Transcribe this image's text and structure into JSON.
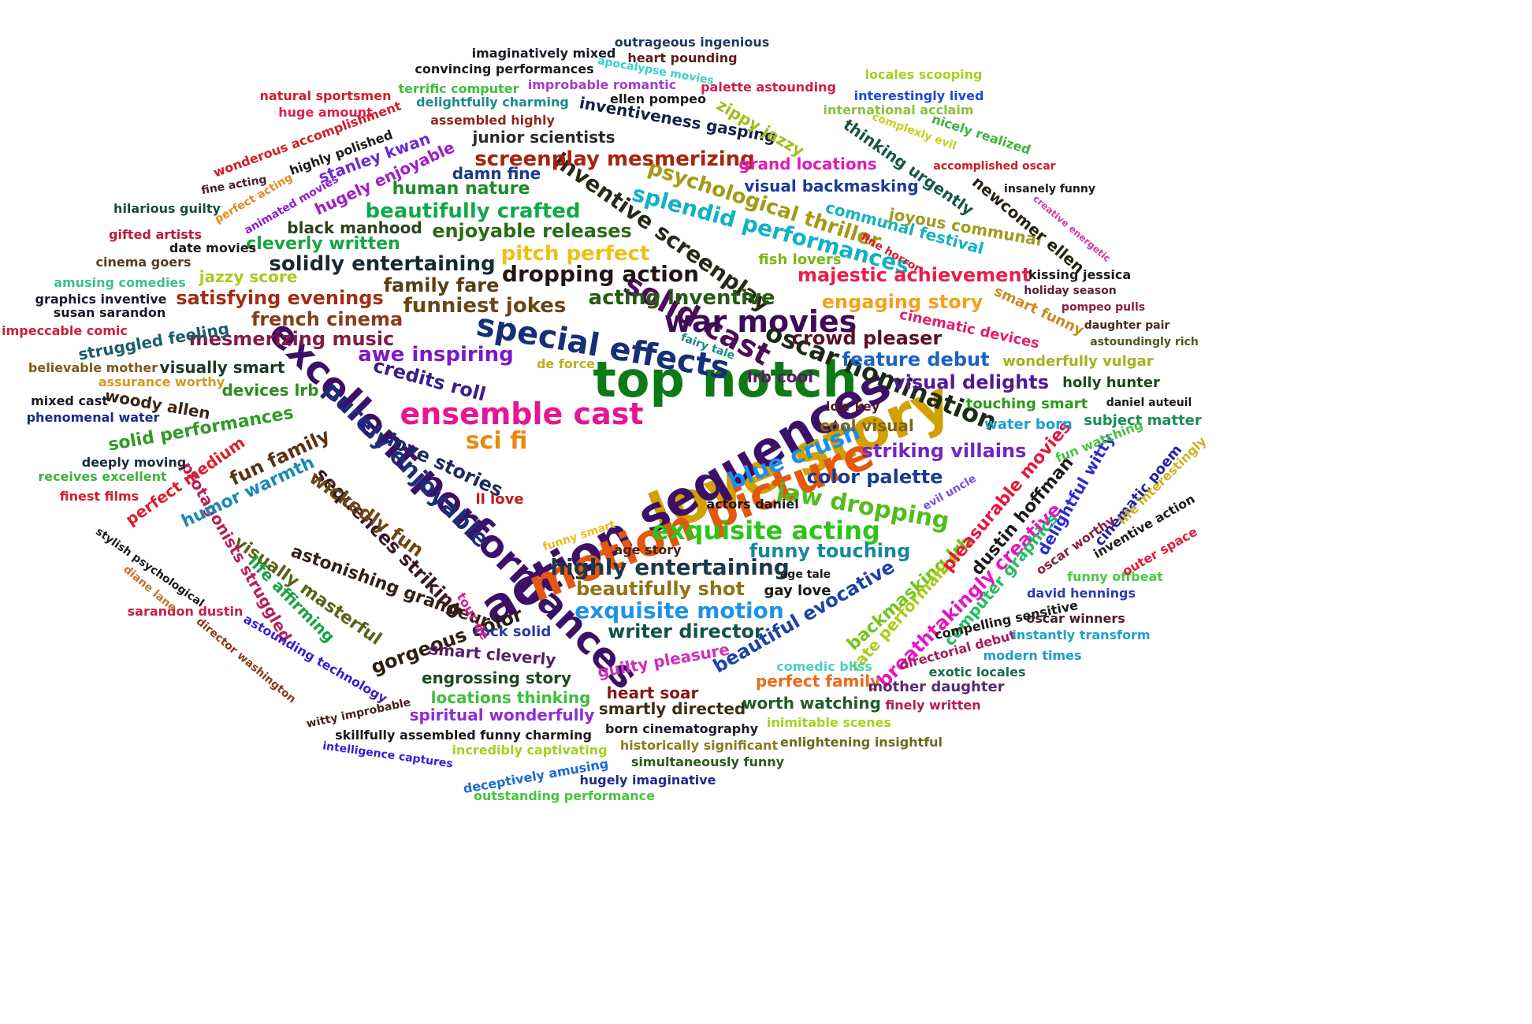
{
  "words": [
    {
      "text": "top notch",
      "color": "#0e7a16"
    },
    {
      "text": "love story",
      "color": "#d2a000"
    },
    {
      "text": "action sequences",
      "color": "#3c0f68"
    },
    {
      "text": "excellent performances",
      "color": "#3c0f68"
    },
    {
      "text": "motion picture",
      "color": "#e3570f"
    },
    {
      "text": "special effects",
      "color": "#172f78"
    },
    {
      "text": "solid cast",
      "color": "#4c0d5a"
    },
    {
      "text": "ensemble cast",
      "color": "#e61593"
    },
    {
      "text": "war movies",
      "color": "#3e0b59"
    },
    {
      "text": "oscar nomination",
      "color": "#1c2b18"
    },
    {
      "text": "purely enjoyable",
      "color": "#1c2e7a"
    },
    {
      "text": "exquisite acting",
      "color": "#2ec41b"
    },
    {
      "text": "dropping action",
      "color": "#231515"
    },
    {
      "text": "sci fi",
      "color": "#e88a10"
    },
    {
      "text": "blue crush",
      "color": "#1e8fe8"
    },
    {
      "text": "jaw dropping",
      "color": "#52bd1e"
    },
    {
      "text": "highly entertaining",
      "color": "#1b3949"
    },
    {
      "text": "exquisite motion",
      "color": "#1f92e8"
    },
    {
      "text": "pitch perfect",
      "color": "#eec018"
    },
    {
      "text": "splendid performances",
      "color": "#11b1c8"
    },
    {
      "text": "inventive screenplay",
      "color": "#252a17"
    },
    {
      "text": "screenplay mesmerizing",
      "color": "#a6230f"
    },
    {
      "text": "beautifully crafted",
      "color": "#10a94a"
    },
    {
      "text": "psychological thriller",
      "color": "#a39b14"
    },
    {
      "text": "solidly entertaining",
      "color": "#152a33"
    },
    {
      "text": "enjoyable releases",
      "color": "#2a6b15"
    },
    {
      "text": "family fare",
      "color": "#5a3c11"
    },
    {
      "text": "funniest jokes",
      "color": "#6a4614"
    },
    {
      "text": "acting inventive",
      "color": "#265a15"
    },
    {
      "text": "majestic achievement",
      "color": "#e91e4e"
    },
    {
      "text": "engaging story",
      "color": "#f4a11f"
    },
    {
      "text": "satisfying evenings",
      "color": "#a02e14"
    },
    {
      "text": "french cinema",
      "color": "#8a3b17"
    },
    {
      "text": "mesmerizing music",
      "color": "#821c45"
    },
    {
      "text": "awe inspiring",
      "color": "#7c18c9"
    },
    {
      "text": "credits roll",
      "color": "#3c1c8c"
    },
    {
      "text": "crowd pleaser",
      "color": "#5a1128"
    },
    {
      "text": "feature debut",
      "color": "#1a63c8"
    },
    {
      "text": "visual delights",
      "color": "#521a93"
    },
    {
      "text": "striking villains",
      "color": "#7424c7"
    },
    {
      "text": "color palette",
      "color": "#193c92"
    },
    {
      "text": "funny touching",
      "color": "#17879d"
    },
    {
      "text": "writer director",
      "color": "#135247"
    },
    {
      "text": "beautifully shot",
      "color": "#917215"
    },
    {
      "text": "beautiful evocative",
      "color": "#1a43a7"
    },
    {
      "text": "backmasking lrb",
      "color": "#74c51b"
    },
    {
      "text": "breathtakingly creative",
      "color": "#e615c4"
    },
    {
      "text": "rate performance",
      "color": "#aacb18"
    },
    {
      "text": "pleasurable movies",
      "color": "#e7163d"
    },
    {
      "text": "dustin hoffman",
      "color": "#1a1a1a"
    },
    {
      "text": "delightful witty",
      "color": "#2b2bd2"
    },
    {
      "text": "cinematic poem",
      "color": "#2420a2"
    },
    {
      "text": "computer graphics",
      "color": "#20bd61"
    },
    {
      "text": "sequences striking",
      "color": "#3a1427"
    },
    {
      "text": "wickedly fun",
      "color": "#6d4712"
    },
    {
      "text": "astonishing grandeur",
      "color": "#352017"
    },
    {
      "text": "visually masterful",
      "color": "#5a6115"
    },
    {
      "text": "life affirming",
      "color": "#17a04c"
    },
    {
      "text": "protagonists struggled",
      "color": "#b71f57"
    },
    {
      "text": "gorgeous color",
      "color": "#2a2012"
    },
    {
      "text": "love stories",
      "color": "#1b2a65"
    },
    {
      "text": "fun family",
      "color": "#5a3215"
    },
    {
      "text": "humor warmth",
      "color": "#1a8ab2"
    },
    {
      "text": "solid performances",
      "color": "#2f9a24"
    },
    {
      "text": "perfect medium",
      "color": "#db1f2d"
    },
    {
      "text": "woody allen",
      "color": "#3b2414"
    },
    {
      "text": "devices lrb",
      "color": "#2c8d1f"
    },
    {
      "text": "visually smart",
      "color": "#1d3723"
    },
    {
      "text": "struggled feeling",
      "color": "#1b5d6d"
    },
    {
      "text": "cleverly written",
      "color": "#14a641"
    },
    {
      "text": "black manhood",
      "color": "#2a451d"
    },
    {
      "text": "human nature",
      "color": "#1c8a28"
    },
    {
      "text": "damn fine",
      "color": "#1c388b"
    },
    {
      "text": "junior scientists",
      "color": "#2a2a2a"
    },
    {
      "text": "hugely enjoyable",
      "color": "#a21cc4"
    },
    {
      "text": "stanley kwan",
      "color": "#6b2bd0"
    },
    {
      "text": "jazzy score",
      "color": "#b1c622"
    },
    {
      "text": "inventiveness gasping",
      "color": "#15204a"
    },
    {
      "text": "zippy jazzy",
      "color": "#a8bb20"
    },
    {
      "text": "grand locations",
      "color": "#e21bb5"
    },
    {
      "text": "visual backmasking",
      "color": "#1c3b96"
    },
    {
      "text": "communal festival",
      "color": "#14b3c0"
    },
    {
      "text": "joyous communal",
      "color": "#9d9d1b"
    },
    {
      "text": "thinking urgently",
      "color": "#175547"
    },
    {
      "text": "newcomer ellen",
      "color": "#252010"
    },
    {
      "text": "fish lovers",
      "color": "#78b51e"
    },
    {
      "text": "kissing jessica",
      "color": "#1a1a1a"
    },
    {
      "text": "smart funny",
      "color": "#ca891f"
    },
    {
      "text": "cinematic devices",
      "color": "#e51d6e"
    },
    {
      "text": "wonderfully vulgar",
      "color": "#a5b11e"
    },
    {
      "text": "holly hunter",
      "color": "#1a4a1a"
    },
    {
      "text": "touching smart",
      "color": "#2c9b1c"
    },
    {
      "text": "cool visual",
      "color": "#7a6418"
    },
    {
      "text": "subject matter",
      "color": "#1a8e57"
    },
    {
      "text": "water born",
      "color": "#1da0d1"
    },
    {
      "text": "lrb cool",
      "color": "#5a1a6b"
    },
    {
      "text": "low key",
      "color": "#521d1d"
    },
    {
      "text": "actors daniel",
      "color": "#1a1a1a"
    },
    {
      "text": "evil uncle",
      "color": "#7b4fd2"
    },
    {
      "text": "fun watching",
      "color": "#46c33e"
    },
    {
      "text": "fairy tale",
      "color": "#158a7d"
    },
    {
      "text": "de force",
      "color": "#b8b023"
    },
    {
      "text": "ll love",
      "color": "#c21a1a"
    },
    {
      "text": "funny smart",
      "color": "#e9ba1d"
    },
    {
      "text": "age story",
      "color": "#4d1d1d"
    },
    {
      "text": "age tale",
      "color": "#1a1a1a"
    },
    {
      "text": "gay love",
      "color": "#1a1a1a"
    },
    {
      "text": "rock solid",
      "color": "#2a3a9b"
    },
    {
      "text": "smart cleverly",
      "color": "#5a1d6b"
    },
    {
      "text": "tour de",
      "color": "#d51e8d"
    },
    {
      "text": "guilty pleasure",
      "color": "#d22dbd"
    },
    {
      "text": "engrossing story",
      "color": "#1d4a1d"
    },
    {
      "text": "locations thinking",
      "color": "#3bc13b"
    },
    {
      "text": "spiritual wonderfully",
      "color": "#8f2ed6"
    },
    {
      "text": "heart soar",
      "color": "#8a1515"
    },
    {
      "text": "smartly directed",
      "color": "#3a2f1a"
    },
    {
      "text": "worth watching",
      "color": "#1f5d2a"
    },
    {
      "text": "perfect family",
      "color": "#ea6a1a"
    },
    {
      "text": "comedic bliss",
      "color": "#4ad0c0"
    },
    {
      "text": "mother daughter",
      "color": "#5a2a74"
    },
    {
      "text": "exotic locales",
      "color": "#1d6b4a"
    },
    {
      "text": "directorial debut",
      "color": "#a31d5a"
    },
    {
      "text": "compelling sensitive",
      "color": "#1a1a1a"
    },
    {
      "text": "modern times",
      "color": "#1d9bc8"
    },
    {
      "text": "instantly transform",
      "color": "#1fa0c9"
    },
    {
      "text": "oscar winners",
      "color": "#4a1d2a"
    },
    {
      "text": "david hennings",
      "color": "#2b3cb0"
    },
    {
      "text": "funny offbeat",
      "color": "#46cc3e"
    },
    {
      "text": "oscar worthy",
      "color": "#8a1d4a"
    },
    {
      "text": "inventive action",
      "color": "#1a1a1a"
    },
    {
      "text": "life interestingly",
      "color": "#c7b61e"
    },
    {
      "text": "outer space",
      "color": "#e01d3a"
    },
    {
      "text": "finely written",
      "color": "#b51d4a"
    },
    {
      "text": "inimitable scenes",
      "color": "#a7d01d"
    },
    {
      "text": "born cinematography",
      "color": "#1a1a2a"
    },
    {
      "text": "enlightening insightful",
      "color": "#6a6a1d"
    },
    {
      "text": "historically significant",
      "color": "#8a7a1d"
    },
    {
      "text": "simultaneously funny",
      "color": "#2a5a1d"
    },
    {
      "text": "hugely imaginative",
      "color": "#1d2a8a"
    },
    {
      "text": "deceptively amusing",
      "color": "#1d6bd0"
    },
    {
      "text": "outstanding performance",
      "color": "#46c33e"
    },
    {
      "text": "incredibly captivating",
      "color": "#a5d01d"
    },
    {
      "text": "skillfully assembled funny charming",
      "color": "#1a1a1a"
    },
    {
      "text": "intelligence captures",
      "color": "#3a1dd0"
    },
    {
      "text": "witty improbable",
      "color": "#4a1d1d"
    },
    {
      "text": "astounding technology",
      "color": "#3a1dd0"
    },
    {
      "text": "director washington",
      "color": "#8a3a1d"
    },
    {
      "text": "sarandon dustin",
      "color": "#c81d4a"
    },
    {
      "text": "diane lane",
      "color": "#c8752a"
    },
    {
      "text": "stylish psychological",
      "color": "#1a1a1a"
    },
    {
      "text": "finest films",
      "color": "#d01d2a"
    },
    {
      "text": "receives excellent",
      "color": "#3cb43c"
    },
    {
      "text": "deeply moving",
      "color": "#1a2a3a"
    },
    {
      "text": "phenomenal water",
      "color": "#1a2a8a"
    },
    {
      "text": "mixed cast",
      "color": "#1a1a2a"
    },
    {
      "text": "assurance worthy",
      "color": "#d09a1d"
    },
    {
      "text": "believable mother",
      "color": "#7a5a1d"
    },
    {
      "text": "impeccable comic",
      "color": "#d01d3a"
    },
    {
      "text": "susan sarandon",
      "color": "#1a1a2a"
    },
    {
      "text": "graphics inventive",
      "color": "#1a1a2a"
    },
    {
      "text": "amusing comedies",
      "color": "#3cc08c"
    },
    {
      "text": "cinema goers",
      "color": "#5a3a1d"
    },
    {
      "text": "date movies",
      "color": "#1a1a1a"
    },
    {
      "text": "gifted artists",
      "color": "#b51d3a"
    },
    {
      "text": "hilarious guilty",
      "color": "#1d4a3a"
    },
    {
      "text": "fine acting",
      "color": "#4a1d2a"
    },
    {
      "text": "perfect acting",
      "color": "#e28a1d"
    },
    {
      "text": "animated movies",
      "color": "#8a1dd0"
    },
    {
      "text": "highly polished",
      "color": "#1a1a1a"
    },
    {
      "text": "wonderous accomplishment",
      "color": "#d01d2a"
    },
    {
      "text": "huge amount",
      "color": "#e01d4a"
    },
    {
      "text": "natural sportsmen",
      "color": "#d01d2a"
    },
    {
      "text": "terrific computer",
      "color": "#3cc03c"
    },
    {
      "text": "delightfully charming",
      "color": "#1d8a8a"
    },
    {
      "text": "assembled highly",
      "color": "#8a2a1d"
    },
    {
      "text": "convincing performances",
      "color": "#1a1a1a"
    },
    {
      "text": "imaginatively mixed",
      "color": "#1a1a2a"
    },
    {
      "text": "outrageous ingenious",
      "color": "#1d3a5a"
    },
    {
      "text": "apocalypse movies",
      "color": "#3cd0c8"
    },
    {
      "text": "heart pounding",
      "color": "#5a1d1d"
    },
    {
      "text": "improbable romantic",
      "color": "#a03cd0"
    },
    {
      "text": "ellen pompeo",
      "color": "#1a1a1a"
    },
    {
      "text": "palette astounding",
      "color": "#d01d4a"
    },
    {
      "text": "locales scooping",
      "color": "#a5d01d"
    },
    {
      "text": "international acclaim",
      "color": "#8ac03c"
    },
    {
      "text": "interestingly lived",
      "color": "#1d4ad0"
    },
    {
      "text": "complexly evil",
      "color": "#c8d01d"
    },
    {
      "text": "nicely realized",
      "color": "#3cb43c"
    },
    {
      "text": "accomplished oscar",
      "color": "#c81d2a"
    },
    {
      "text": "insanely funny",
      "color": "#1a1a1a"
    },
    {
      "text": "creative energetic",
      "color": "#d03ca0"
    },
    {
      "text": "fine horror",
      "color": "#d01d2a"
    },
    {
      "text": "holiday season",
      "color": "#5a1d3a"
    },
    {
      "text": "pompeo pulls",
      "color": "#8a1d4a"
    },
    {
      "text": "daughter pair",
      "color": "#4a2a1d"
    },
    {
      "text": "astoundingly rich",
      "color": "#4a5a1d"
    },
    {
      "text": "daniel auteuil",
      "color": "#1a1a1a"
    }
  ]
}
